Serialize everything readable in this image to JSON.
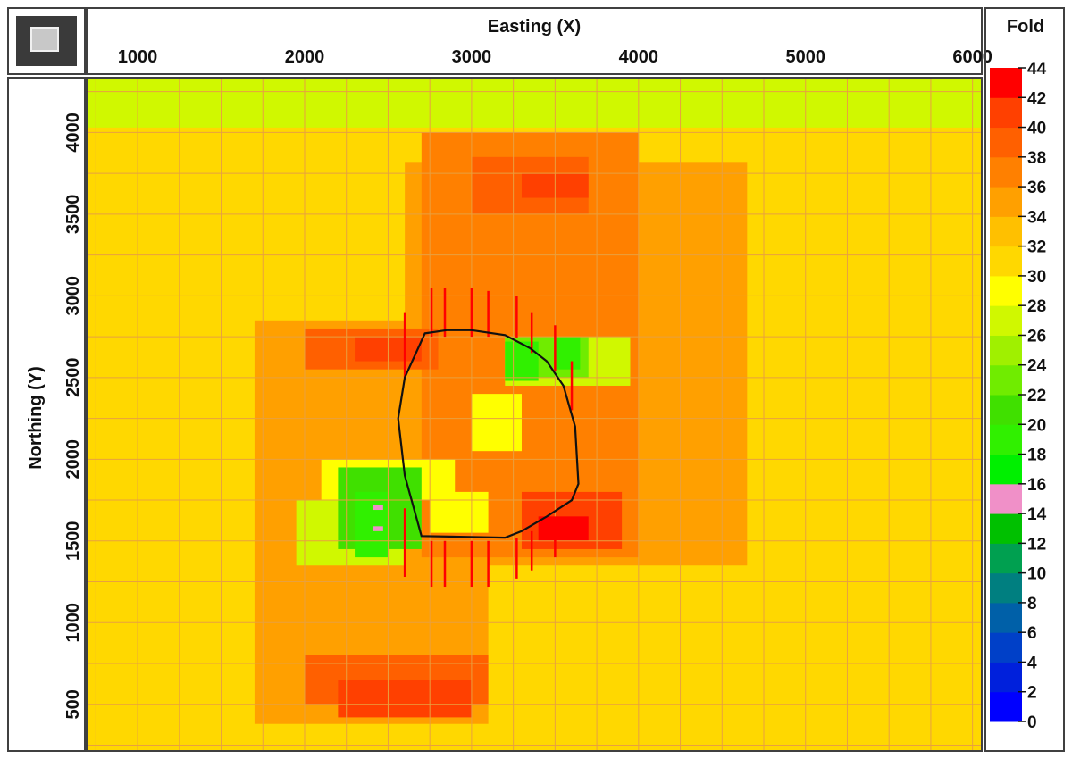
{
  "chart_data": {
    "type": "heatmap",
    "xlabel": "Easting (X)",
    "ylabel": "Northing (Y)",
    "xlim": [
      700,
      6050
    ],
    "ylim": [
      220,
      4330
    ],
    "xticks": [
      1000,
      2000,
      3000,
      4000,
      5000,
      6000
    ],
    "yticks": [
      500,
      1000,
      1500,
      2000,
      2500,
      3000,
      3500,
      4000
    ],
    "background_fold": 30,
    "top_strip": {
      "fold": 27,
      "y_range": [
        4030,
        4330
      ]
    },
    "cell_grid": {
      "dx": 250,
      "dy": 250
    },
    "colorbar": {
      "title": "Fold",
      "ticks": [
        0,
        2,
        4,
        6,
        8,
        10,
        12,
        14,
        16,
        18,
        20,
        22,
        24,
        26,
        28,
        30,
        32,
        34,
        36,
        38,
        40,
        42,
        44
      ],
      "bands": [
        {
          "from": 0,
          "to": 2,
          "color": "#0000ff"
        },
        {
          "from": 2,
          "to": 4,
          "color": "#0020dc"
        },
        {
          "from": 4,
          "to": 6,
          "color": "#0040c8"
        },
        {
          "from": 6,
          "to": 8,
          "color": "#0060a8"
        },
        {
          "from": 8,
          "to": 10,
          "color": "#007f80"
        },
        {
          "from": 10,
          "to": 12,
          "color": "#00a050"
        },
        {
          "from": 12,
          "to": 14,
          "color": "#00c000"
        },
        {
          "from": 14,
          "to": 16,
          "color": "#f090c8"
        },
        {
          "from": 16,
          "to": 18,
          "color": "#00f000"
        },
        {
          "from": 18,
          "to": 20,
          "color": "#30f000"
        },
        {
          "from": 20,
          "to": 22,
          "color": "#40e000"
        },
        {
          "from": 22,
          "to": 24,
          "color": "#70ec00"
        },
        {
          "from": 24,
          "to": 26,
          "color": "#a0f000"
        },
        {
          "from": 26,
          "to": 28,
          "color": "#d0f800"
        },
        {
          "from": 28,
          "to": 30,
          "color": "#ffff00"
        },
        {
          "from": 30,
          "to": 32,
          "color": "#ffd800"
        },
        {
          "from": 32,
          "to": 34,
          "color": "#ffc000"
        },
        {
          "from": 34,
          "to": 36,
          "color": "#ffa000"
        },
        {
          "from": 36,
          "to": 38,
          "color": "#ff8000"
        },
        {
          "from": 38,
          "to": 40,
          "color": "#ff6000"
        },
        {
          "from": 40,
          "to": 42,
          "color": "#ff4000"
        },
        {
          "from": 42,
          "to": 44,
          "color": "#ff0000"
        }
      ]
    },
    "fold_zones": [
      {
        "x": [
          1700,
          3100
        ],
        "y": [
          380,
          2850
        ],
        "fold": 34
      },
      {
        "x": [
          2600,
          4650
        ],
        "y": [
          1350,
          3820
        ],
        "fold": 34
      },
      {
        "x": [
          2700,
          4000
        ],
        "y": [
          1400,
          4000
        ],
        "fold": 36
      },
      {
        "x": [
          2000,
          3100
        ],
        "y": [
          500,
          800
        ],
        "fold": 38
      },
      {
        "x": [
          2200,
          3000
        ],
        "y": [
          420,
          650
        ],
        "fold": 40
      },
      {
        "x": [
          2000,
          2800
        ],
        "y": [
          2550,
          2800
        ],
        "fold": 38
      },
      {
        "x": [
          2300,
          2700
        ],
        "y": [
          2600,
          2750
        ],
        "fold": 40
      },
      {
        "x": [
          3000,
          3700
        ],
        "y": [
          3500,
          3850
        ],
        "fold": 38
      },
      {
        "x": [
          3300,
          3700
        ],
        "y": [
          3600,
          3750
        ],
        "fold": 40
      },
      {
        "x": [
          3300,
          3900
        ],
        "y": [
          1450,
          1800
        ],
        "fold": 40
      },
      {
        "x": [
          3400,
          3700
        ],
        "y": [
          1500,
          1650
        ],
        "fold": 44
      },
      {
        "x": [
          2100,
          2900
        ],
        "y": [
          1750,
          2000
        ],
        "fold": 28
      },
      {
        "x": [
          1950,
          2600
        ],
        "y": [
          1350,
          1750
        ],
        "fold": 26
      },
      {
        "x": [
          2200,
          2700
        ],
        "y": [
          1450,
          1950
        ],
        "fold": 20
      },
      {
        "x": [
          2300,
          2500
        ],
        "y": [
          1400,
          1800
        ],
        "fold": 18
      },
      {
        "x": [
          2750,
          3100
        ],
        "y": [
          1550,
          1800
        ],
        "fold": 28
      },
      {
        "x": [
          3200,
          3950
        ],
        "y": [
          2450,
          2750
        ],
        "fold": 26
      },
      {
        "x": [
          3200,
          3700
        ],
        "y": [
          2500,
          2750
        ],
        "fold": 22
      },
      {
        "x": [
          3200,
          3400
        ],
        "y": [
          2480,
          2720
        ],
        "fold": 18
      },
      {
        "x": [
          3500,
          3650
        ],
        "y": [
          2550,
          2750
        ],
        "fold": 18
      },
      {
        "x": [
          3000,
          3300
        ],
        "y": [
          2050,
          2400
        ],
        "fold": 28
      }
    ],
    "receiver_lines": [
      {
        "x": 2600,
        "y": [
          2500,
          2900
        ]
      },
      {
        "x": 2760,
        "y": [
          2750,
          3050
        ]
      },
      {
        "x": 2840,
        "y": [
          2750,
          3050
        ]
      },
      {
        "x": 3000,
        "y": [
          2750,
          3050
        ]
      },
      {
        "x": 3100,
        "y": [
          2750,
          3030
        ]
      },
      {
        "x": 3270,
        "y": [
          2740,
          3000
        ]
      },
      {
        "x": 3360,
        "y": [
          2650,
          2900
        ]
      },
      {
        "x": 3500,
        "y": [
          2540,
          2820
        ]
      },
      {
        "x": 3600,
        "y": [
          2300,
          2600
        ]
      },
      {
        "x": 2600,
        "y": [
          1280,
          1700
        ]
      },
      {
        "x": 2760,
        "y": [
          1220,
          1500
        ]
      },
      {
        "x": 2840,
        "y": [
          1220,
          1500
        ]
      },
      {
        "x": 3000,
        "y": [
          1220,
          1500
        ]
      },
      {
        "x": 3100,
        "y": [
          1220,
          1500
        ]
      },
      {
        "x": 3270,
        "y": [
          1270,
          1520
        ]
      },
      {
        "x": 3360,
        "y": [
          1320,
          1560
        ]
      },
      {
        "x": 3500,
        "y": [
          1400,
          1650
        ]
      }
    ],
    "excluded_cells": [
      {
        "x": [
          2410,
          2470
        ],
        "y": [
          1690,
          1720
        ],
        "fold": 14
      },
      {
        "x": [
          2410,
          2470
        ],
        "y": [
          1560,
          1590
        ],
        "fold": 14
      }
    ],
    "outline": {
      "x": [
        2720,
        2850,
        3000,
        3200,
        3350,
        3450,
        3550,
        3620,
        3640,
        3600,
        3450,
        3300,
        3200,
        2700,
        2600,
        2560,
        2600
      ],
      "y": [
        2770,
        2790,
        2790,
        2760,
        2680,
        2600,
        2450,
        2200,
        1850,
        1750,
        1650,
        1560,
        1520,
        1530,
        1900,
        2250,
        2500
      ]
    }
  }
}
